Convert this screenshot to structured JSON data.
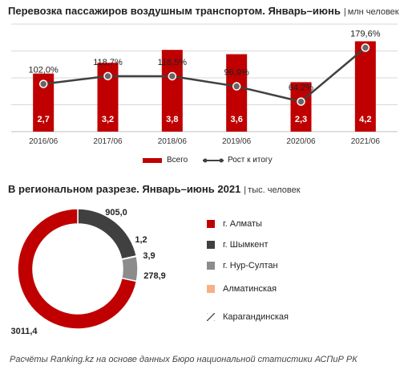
{
  "header": {
    "title": "Перевозка пассажиров воздушным транспортом. Январь–июнь",
    "unit": "млн человек"
  },
  "section2": {
    "title": "В региональном разрезе. Январь–июнь 2021",
    "unit": "тыс. человек"
  },
  "footer": "Расчёты Ranking.kz на основе данных Бюро национальной статистики АСПиР РК",
  "chart_data": [
    {
      "type": "bar",
      "categories": [
        "2016/06",
        "2017/06",
        "2018/06",
        "2019/06",
        "2020/06",
        "2021/06"
      ],
      "series": [
        {
          "name": "Всего",
          "kind": "bar",
          "color": "#c00000",
          "values": [
            2.7,
            3.2,
            3.8,
            3.6,
            2.3,
            4.2
          ],
          "labels": [
            "2,7",
            "3,2",
            "3,8",
            "3,6",
            "2,3",
            "4,2"
          ]
        },
        {
          "name": "Рост к итогу",
          "kind": "line",
          "color": "#404040",
          "values": [
            102.0,
            118.7,
            118.5,
            96.9,
            64.2,
            179.6
          ],
          "labels": [
            "102,0%",
            "118,7%",
            "118,5%",
            "96,9%",
            "64,2%",
            "179,6%"
          ]
        }
      ],
      "ylim": [
        0,
        5
      ],
      "y2lim": [
        0,
        230
      ],
      "grid": true,
      "legend": "bottom"
    },
    {
      "type": "pie",
      "variant": "donut",
      "categories": [
        "г. Алматы",
        "г. Шымкент",
        "г. Нур-Султан",
        "Алматинская",
        "Карагандинская"
      ],
      "values": [
        3011.4,
        905.0,
        278.9,
        3.9,
        1.2
      ],
      "labels": [
        "3011,4",
        "905,0",
        "278,9",
        "3,9",
        "1,2"
      ],
      "colors": [
        "#c00000",
        "#404040",
        "#8c8c8c",
        "#f4b183",
        "#404040"
      ],
      "patterns": [
        "solid",
        "solid",
        "solid",
        "solid",
        "hatch"
      ],
      "legend": "right"
    }
  ]
}
